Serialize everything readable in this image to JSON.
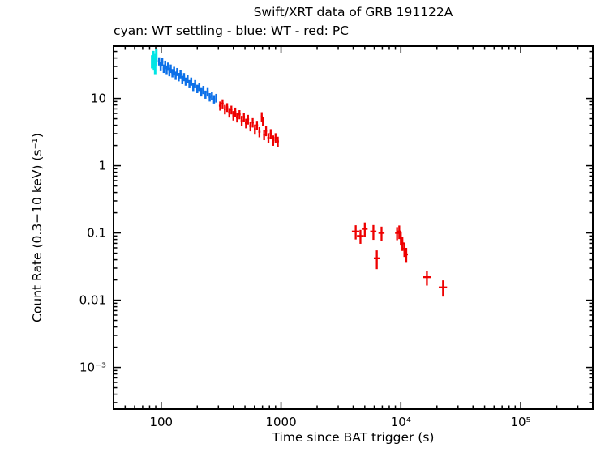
{
  "chart_data": {
    "type": "scatter",
    "title": "Swift/XRT data of GRB 191122A",
    "subtitle": "cyan: WT settling - blue: WT - red: PC",
    "xlabel": "Time since BAT trigger (s)",
    "ylabel": "Count Rate (0.3−10 keV) (s⁻¹)",
    "xscale": "log",
    "yscale": "log",
    "xlim": [
      40,
      400000
    ],
    "ylim": [
      0.00024,
      60
    ],
    "grid": false,
    "frame_color": "#000000",
    "background": "#ffffff",
    "marker": "cross-errorbars",
    "legend_position": "subtitle-line",
    "xticks": [
      {
        "v": 100,
        "label": "100"
      },
      {
        "v": 1000,
        "label": "1000"
      },
      {
        "v": 10000,
        "label": "10⁴"
      },
      {
        "v": 100000,
        "label": "10⁵"
      }
    ],
    "yticks": [
      {
        "v": 10,
        "label": "10"
      },
      {
        "v": 1,
        "label": "1"
      },
      {
        "v": 0.1,
        "label": "0.1"
      },
      {
        "v": 0.01,
        "label": "0.01"
      },
      {
        "v": 0.001,
        "label": "10⁻³"
      }
    ],
    "series": [
      {
        "name": "WT settling",
        "color": "#00e5e5",
        "lw": 3,
        "points": [
          [
            84,
            36,
            1.5,
            8
          ],
          [
            86,
            42,
            1.5,
            9
          ],
          [
            87,
            33,
            1.5,
            7
          ],
          [
            89,
            29,
            1.5,
            6
          ],
          [
            90,
            38,
            1.5,
            8
          ],
          [
            91,
            45,
            1.5,
            10
          ]
        ]
      },
      {
        "name": "WT",
        "color": "#0c70e8",
        "lw": 2.5,
        "points": [
          [
            96,
            36,
            2,
            5
          ],
          [
            99,
            30,
            2,
            4.5
          ],
          [
            102,
            35,
            2,
            5
          ],
          [
            105,
            28,
            2,
            4
          ],
          [
            108,
            32,
            2,
            4.5
          ],
          [
            111,
            27,
            2,
            4
          ],
          [
            114,
            30,
            2,
            4.2
          ],
          [
            117,
            25,
            2,
            3.6
          ],
          [
            120,
            28,
            2,
            4
          ],
          [
            124,
            24,
            2.5,
            3.4
          ],
          [
            128,
            26,
            2.5,
            3.6
          ],
          [
            132,
            22,
            2.5,
            3.1
          ],
          [
            136,
            25,
            2.5,
            3.4
          ],
          [
            140,
            21,
            2.5,
            3
          ],
          [
            145,
            23,
            3,
            3.1
          ],
          [
            150,
            19,
            3,
            2.7
          ],
          [
            155,
            21,
            3,
            2.9
          ],
          [
            160,
            18,
            3,
            2.5
          ],
          [
            166,
            19.5,
            3,
            2.7
          ],
          [
            172,
            16.5,
            3,
            2.3
          ],
          [
            178,
            18,
            3,
            2.5
          ],
          [
            185,
            15,
            3.5,
            2.1
          ],
          [
            192,
            16.5,
            3.5,
            2.3
          ],
          [
            200,
            14,
            4,
            2
          ],
          [
            208,
            15,
            4,
            2.1
          ],
          [
            216,
            12.5,
            4,
            1.8
          ],
          [
            225,
            13.5,
            4,
            1.9
          ],
          [
            234,
            11.5,
            4,
            1.6
          ],
          [
            244,
            12.5,
            5,
            1.8
          ],
          [
            254,
            10.5,
            5,
            1.5
          ],
          [
            265,
            11,
            5,
            1.6
          ],
          [
            276,
            9.8,
            5,
            1.4
          ],
          [
            288,
            10.2,
            5,
            1.5
          ]
        ]
      },
      {
        "name": "PC",
        "color": "#ee0000",
        "lw": 2.3,
        "points": [
          [
            310,
            7.8,
            7,
            1.2
          ],
          [
            325,
            8.4,
            7,
            1.3
          ],
          [
            340,
            6.9,
            7,
            1.1
          ],
          [
            355,
            7.4,
            7,
            1.1
          ],
          [
            370,
            6.2,
            8,
            1.0
          ],
          [
            385,
            6.8,
            8,
            1.0
          ],
          [
            400,
            5.6,
            8,
            0.9
          ],
          [
            415,
            6.3,
            8,
            1.0
          ],
          [
            430,
            5.2,
            9,
            0.8
          ],
          [
            450,
            5.8,
            10,
            0.9
          ],
          [
            470,
            4.7,
            10,
            0.8
          ],
          [
            490,
            5.3,
            10,
            0.8
          ],
          [
            510,
            4.3,
            10,
            0.7
          ],
          [
            530,
            4.9,
            11,
            0.8
          ],
          [
            555,
            3.9,
            12,
            0.65
          ],
          [
            580,
            4.4,
            12,
            0.7
          ],
          [
            605,
            3.5,
            12,
            0.6
          ],
          [
            630,
            4.0,
            13,
            0.65
          ],
          [
            660,
            3.2,
            14,
            0.55
          ],
          [
            690,
            5.4,
            12,
            0.85
          ],
          [
            706,
            4.6,
            9,
            0.75
          ],
          [
            722,
            2.9,
            14,
            0.5
          ],
          [
            750,
            3.3,
            15,
            0.55
          ],
          [
            785,
            2.6,
            16,
            0.45
          ],
          [
            820,
            3.0,
            17,
            0.5
          ],
          [
            860,
            2.4,
            18,
            0.42
          ],
          [
            900,
            2.6,
            19,
            0.45
          ],
          [
            940,
            2.3,
            20,
            0.4
          ],
          [
            4200,
            0.105,
            300,
            0.025
          ],
          [
            4600,
            0.09,
            300,
            0.021
          ],
          [
            5000,
            0.115,
            280,
            0.028
          ],
          [
            5900,
            0.105,
            350,
            0.026
          ],
          [
            6300,
            0.042,
            350,
            0.013
          ],
          [
            6900,
            0.1,
            400,
            0.024
          ],
          [
            9300,
            0.1,
            350,
            0.022
          ],
          [
            9700,
            0.105,
            300,
            0.024
          ],
          [
            10000,
            0.085,
            250,
            0.02
          ],
          [
            10300,
            0.07,
            280,
            0.016
          ],
          [
            10700,
            0.058,
            300,
            0.014
          ],
          [
            11100,
            0.048,
            350,
            0.012
          ],
          [
            16500,
            0.022,
            1300,
            0.0055
          ],
          [
            22500,
            0.0155,
            1800,
            0.0042
          ]
        ]
      }
    ]
  }
}
